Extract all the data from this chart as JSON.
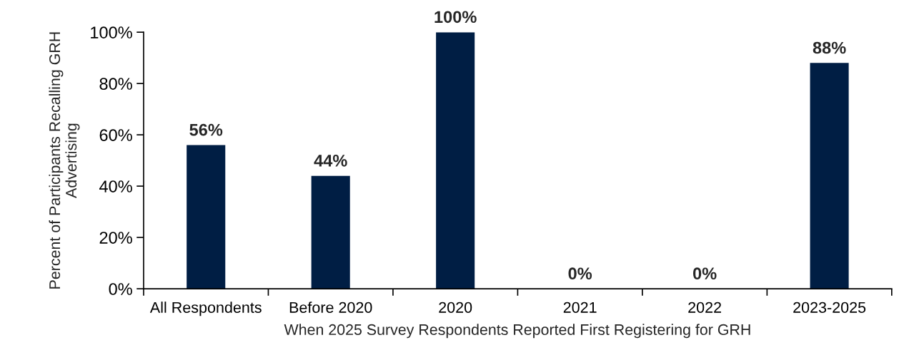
{
  "chart_data": {
    "type": "bar",
    "xlabel": "When 2025 Survey Respondents Reported First Registering for GRH",
    "ylabel": "Percent of Participants Recalling GRH\nAdvertising",
    "categories": [
      "All Respondents",
      "Before 2020",
      "2020",
      "2021",
      "2022",
      "2023-2025"
    ],
    "values": [
      56,
      44,
      100,
      0,
      0,
      88
    ],
    "value_labels": [
      "56%",
      "44%",
      "100%",
      "0%",
      "0%",
      "88%"
    ],
    "color": "#001e44",
    "ylim": [
      0,
      100
    ],
    "yticks": [
      {
        "value": 0,
        "label": "0%"
      },
      {
        "value": 20,
        "label": "20%"
      },
      {
        "value": 40,
        "label": "40%"
      },
      {
        "value": 60,
        "label": "60%"
      },
      {
        "value": 80,
        "label": "80%"
      },
      {
        "value": 100,
        "label": "100%"
      }
    ],
    "grid": false
  }
}
